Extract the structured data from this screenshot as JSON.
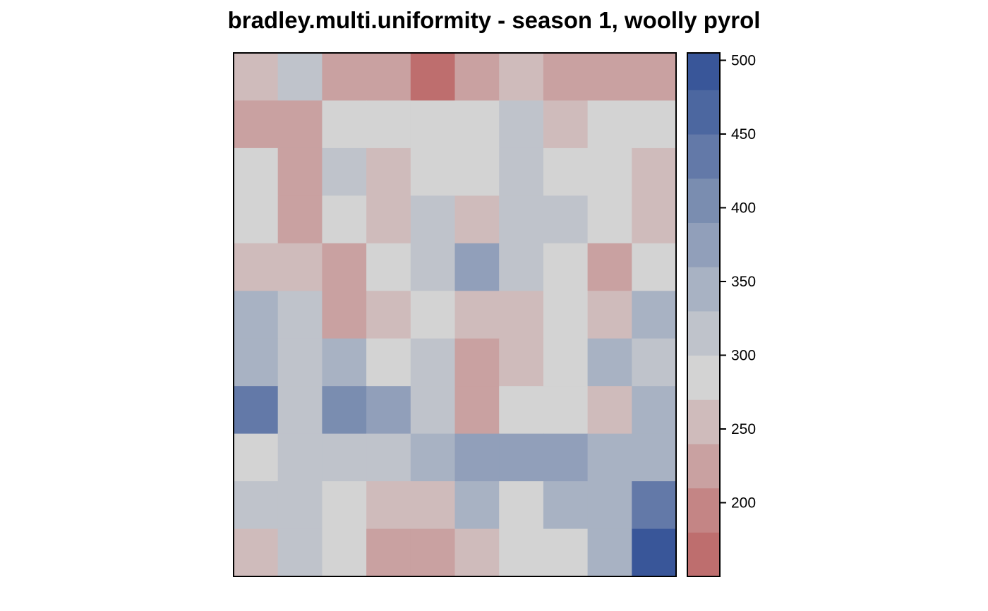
{
  "chart_data": {
    "type": "heatmap",
    "title": "bradley.multi.uniformity - season 1, woolly pyrol",
    "n_rows": 11,
    "n_cols": 10,
    "grid": [
      [
        250,
        310,
        230,
        210,
        170,
        210,
        250,
        210,
        210,
        210
      ],
      [
        210,
        230,
        290,
        290,
        290,
        290,
        320,
        250,
        290,
        290
      ],
      [
        290,
        230,
        320,
        250,
        290,
        290,
        320,
        290,
        290,
        250
      ],
      [
        290,
        230,
        290,
        250,
        320,
        250,
        320,
        320,
        290,
        250
      ],
      [
        250,
        250,
        230,
        290,
        320,
        360,
        320,
        290,
        230,
        290
      ],
      [
        340,
        320,
        230,
        250,
        290,
        250,
        250,
        290,
        250,
        340
      ],
      [
        340,
        320,
        340,
        290,
        320,
        230,
        250,
        290,
        340,
        320
      ],
      [
        430,
        320,
        410,
        380,
        320,
        230,
        290,
        290,
        250,
        340
      ],
      [
        290,
        320,
        320,
        320,
        340,
        380,
        380,
        380,
        340,
        340
      ],
      [
        320,
        320,
        290,
        250,
        250,
        340,
        290,
        340,
        340,
        430
      ],
      [
        250,
        320,
        290,
        230,
        230,
        260,
        290,
        290,
        340,
        490
      ]
    ],
    "colorbar": {
      "min": 150,
      "max": 505,
      "breaks": [
        150,
        180,
        210,
        240,
        270,
        300,
        330,
        360,
        390,
        420,
        450,
        480,
        505
      ],
      "colors": [
        "#BE6E6E",
        "#C48585",
        "#C9A1A1",
        "#CFBBBB",
        "#D3D3D3",
        "#BFC3CB",
        "#A8B2C3",
        "#919FBA",
        "#7A8DB0",
        "#6379A8",
        "#4C67A0",
        "#395699"
      ],
      "ticks": [
        200,
        250,
        300,
        350,
        400,
        450,
        500
      ]
    },
    "grid_lines": false
  }
}
